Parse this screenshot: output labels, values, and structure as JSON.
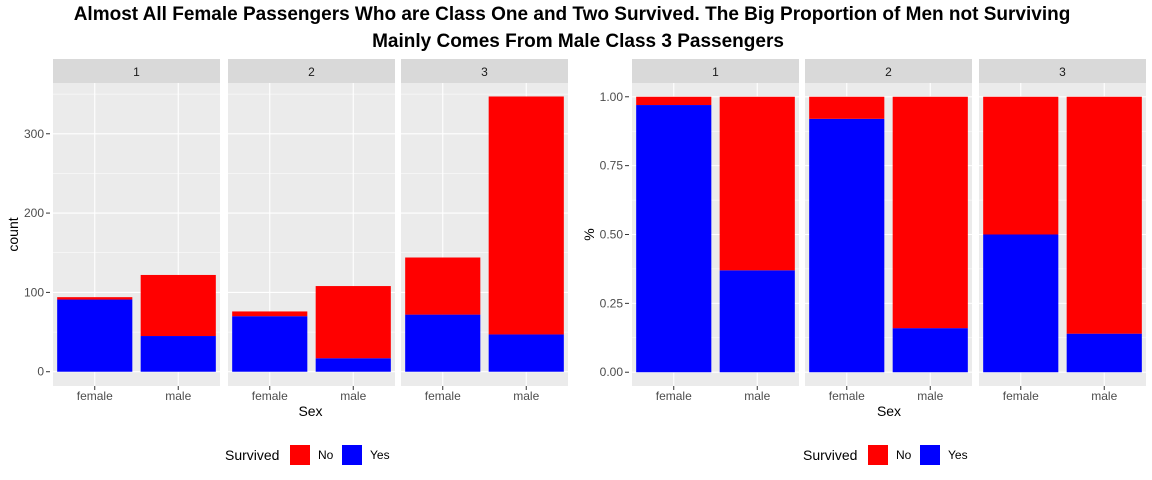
{
  "figure_title_line1": "Almost All Female Passengers Who are Class One and Two Survived. The Big Proportion of Men not Surviving",
  "figure_title_line2": "Mainly Comes From Male Class 3 Passengers",
  "colors": {
    "No": "#ff0000",
    "Yes": "#0000ff",
    "panel_bg": "#ebebeb",
    "strip_bg": "#d9d9d9",
    "grid": "#ffffff"
  },
  "chart_data": [
    {
      "type": "bar",
      "stacked": true,
      "facets": [
        "1",
        "2",
        "3"
      ],
      "categories": [
        "female",
        "male"
      ],
      "xlabel": "Sex",
      "ylabel": "count",
      "ylim": [
        -18,
        364
      ],
      "yticks": [
        0,
        100,
        200,
        300
      ],
      "ytick_labels": [
        "0",
        "100",
        "200",
        "300"
      ],
      "legend": {
        "title": "Survived",
        "entries": [
          "No",
          "Yes"
        ],
        "position": "bottom"
      },
      "series": [
        {
          "name": "Yes",
          "facet_values": [
            [
              91,
              45
            ],
            [
              70,
              17
            ],
            [
              72,
              47
            ]
          ]
        },
        {
          "name": "No",
          "facet_values": [
            [
              3,
              77
            ],
            [
              6,
              91
            ],
            [
              72,
              300
            ]
          ]
        }
      ]
    },
    {
      "type": "bar",
      "stacked": true,
      "facets": [
        "1",
        "2",
        "3"
      ],
      "categories": [
        "female",
        "male"
      ],
      "xlabel": "Sex",
      "ylabel": "%",
      "ylim": [
        -0.05,
        1.05
      ],
      "yticks": [
        0,
        0.25,
        0.5,
        0.75,
        1.0
      ],
      "ytick_labels": [
        "0.00",
        "0.25",
        "0.50",
        "0.75",
        "1.00"
      ],
      "legend": {
        "title": "Survived",
        "entries": [
          "No",
          "Yes"
        ],
        "position": "bottom"
      },
      "series": [
        {
          "name": "Yes",
          "facet_values": [
            [
              0.97,
              0.37
            ],
            [
              0.92,
              0.16
            ],
            [
              0.5,
              0.14
            ]
          ]
        },
        {
          "name": "No",
          "facet_values": [
            [
              0.03,
              0.63
            ],
            [
              0.08,
              0.84
            ],
            [
              0.5,
              0.86
            ]
          ]
        }
      ]
    }
  ]
}
